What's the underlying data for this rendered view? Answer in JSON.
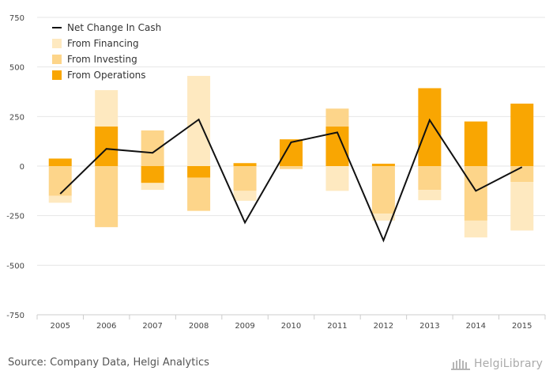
{
  "chart_data": {
    "type": "bar",
    "stacked": true,
    "categories": [
      "2005",
      "2006",
      "2007",
      "2008",
      "2009",
      "2010",
      "2011",
      "2012",
      "2013",
      "2014",
      "2015"
    ],
    "series": [
      {
        "name": "From Operations",
        "kind": "bar",
        "color": "#f9a602",
        "values": [
          38,
          200,
          -85,
          -58,
          15,
          135,
          200,
          12,
          393,
          225,
          315
        ]
      },
      {
        "name": "From Investing",
        "kind": "bar",
        "color": "#fdd58a",
        "values": [
          -150,
          -308,
          180,
          -168,
          -125,
          -15,
          90,
          -240,
          -120,
          -275,
          -80
        ]
      },
      {
        "name": "From Financing",
        "kind": "bar",
        "color": "#fee9c0",
        "values": [
          -35,
          183,
          -35,
          455,
          -50,
          0,
          -125,
          -35,
          -52,
          -85,
          -245
        ]
      },
      {
        "name": "Net Change In Cash",
        "kind": "line",
        "color": "#111111",
        "values": [
          -140,
          87,
          67,
          235,
          -285,
          120,
          170,
          -375,
          232,
          -125,
          -5
        ]
      }
    ],
    "ylim": [
      -750,
      750
    ],
    "yticks": [
      750,
      500,
      250,
      0,
      -250,
      -500,
      -750
    ],
    "grid": true,
    "legend": "top-left",
    "source": "Source: Company Data, Helgi Analytics",
    "logo_text": "HelgiLibrary"
  }
}
